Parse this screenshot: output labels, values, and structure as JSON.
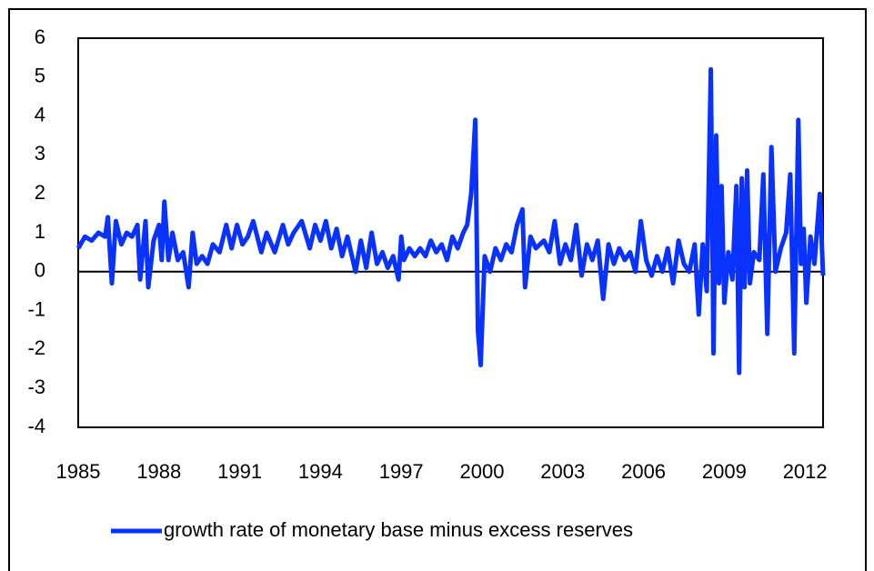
{
  "chart_data": {
    "type": "line",
    "x": [
      1985.0,
      1985.25,
      1985.5,
      1985.75,
      1986.0,
      1986.1,
      1986.25,
      1986.4,
      1986.6,
      1986.8,
      1987.0,
      1987.2,
      1987.3,
      1987.5,
      1987.6,
      1987.8,
      1988.0,
      1988.1,
      1988.2,
      1988.35,
      1988.5,
      1988.7,
      1988.9,
      1989.1,
      1989.25,
      1989.4,
      1989.6,
      1989.8,
      1990.0,
      1990.25,
      1990.5,
      1990.7,
      1990.9,
      1991.1,
      1991.3,
      1991.5,
      1991.8,
      1992.0,
      1992.3,
      1992.6,
      1992.8,
      1993.0,
      1993.3,
      1993.6,
      1993.8,
      1994.0,
      1994.2,
      1994.4,
      1994.6,
      1994.8,
      1995.0,
      1995.3,
      1995.5,
      1995.7,
      1995.9,
      1996.1,
      1996.3,
      1996.5,
      1996.7,
      1996.9,
      1997.0,
      1997.1,
      1997.3,
      1997.5,
      1997.7,
      1997.9,
      1998.1,
      1998.3,
      1998.5,
      1998.7,
      1998.9,
      1999.1,
      1999.3,
      1999.45,
      1999.6,
      1999.75,
      1999.85,
      1999.95,
      2000.1,
      2000.3,
      2000.5,
      2000.7,
      2000.9,
      2001.1,
      2001.3,
      2001.5,
      2001.6,
      2001.8,
      2002.0,
      2002.3,
      2002.5,
      2002.7,
      2002.9,
      2003.1,
      2003.3,
      2003.5,
      2003.7,
      2003.9,
      2004.1,
      2004.3,
      2004.5,
      2004.7,
      2004.9,
      2005.1,
      2005.3,
      2005.5,
      2005.7,
      2005.9,
      2006.1,
      2006.3,
      2006.5,
      2006.7,
      2006.9,
      2007.1,
      2007.3,
      2007.5,
      2007.7,
      2007.9,
      2008.05,
      2008.2,
      2008.35,
      2008.5,
      2008.6,
      2008.7,
      2008.8,
      2008.9,
      2009.0,
      2009.15,
      2009.3,
      2009.45,
      2009.55,
      2009.65,
      2009.75,
      2009.85,
      2009.95,
      2010.1,
      2010.3,
      2010.45,
      2010.6,
      2010.75,
      2010.9,
      2011.1,
      2011.3,
      2011.45,
      2011.6,
      2011.75,
      2011.85,
      2011.95,
      2012.05,
      2012.2,
      2012.35,
      2012.55,
      2012.67
    ],
    "series": [
      {
        "name": "growth rate of monetary base minus excess reserves",
        "color": "#0a32ff",
        "values": [
          0.6,
          0.9,
          0.8,
          1.0,
          0.9,
          1.4,
          -0.3,
          1.3,
          0.7,
          1.0,
          0.9,
          1.2,
          -0.2,
          1.3,
          -0.4,
          0.8,
          1.2,
          0.3,
          1.8,
          0.3,
          1.0,
          0.3,
          0.5,
          -0.4,
          1.0,
          0.2,
          0.4,
          0.2,
          0.7,
          0.5,
          1.2,
          0.6,
          1.2,
          0.7,
          0.9,
          1.3,
          0.5,
          1.0,
          0.5,
          1.2,
          0.7,
          1.0,
          1.3,
          0.6,
          1.2,
          0.8,
          1.3,
          0.6,
          1.1,
          0.4,
          0.9,
          0.0,
          0.8,
          0.1,
          1.0,
          0.2,
          0.5,
          0.1,
          0.4,
          -0.2,
          0.9,
          0.3,
          0.6,
          0.4,
          0.6,
          0.4,
          0.8,
          0.5,
          0.7,
          0.3,
          0.9,
          0.6,
          1.0,
          1.2,
          2.0,
          3.9,
          -1.5,
          -2.4,
          0.4,
          0.0,
          0.6,
          0.3,
          0.7,
          0.5,
          1.2,
          1.6,
          -0.4,
          0.9,
          0.6,
          0.8,
          0.5,
          1.3,
          0.2,
          0.7,
          0.3,
          1.2,
          -0.1,
          0.7,
          0.3,
          0.8,
          -0.7,
          0.7,
          0.2,
          0.6,
          0.3,
          0.5,
          0.0,
          1.3,
          0.3,
          -0.1,
          0.4,
          0.0,
          0.6,
          -0.3,
          0.8,
          0.2,
          0.0,
          0.7,
          -1.1,
          0.7,
          -0.5,
          5.2,
          -2.1,
          3.5,
          -0.3,
          2.2,
          -0.8,
          0.5,
          -0.2,
          2.2,
          -2.6,
          2.4,
          -0.4,
          2.6,
          -0.3,
          0.5,
          0.3,
          2.5,
          -1.6,
          3.2,
          0.0,
          0.6,
          1.0,
          2.5,
          -2.1,
          3.9,
          0.2,
          1.1,
          -0.8,
          0.9,
          0.2,
          2.0,
          -0.1
        ]
      }
    ],
    "xlim": [
      1985,
      2012.67
    ],
    "xticks": [
      1985,
      1988,
      1991,
      1994,
      1997,
      2000,
      2003,
      2006,
      2009,
      2012
    ],
    "ylim": [
      -4,
      6
    ],
    "yticks": [
      -4,
      -3,
      -2,
      -1,
      0,
      1,
      2,
      3,
      4,
      5,
      6
    ]
  }
}
